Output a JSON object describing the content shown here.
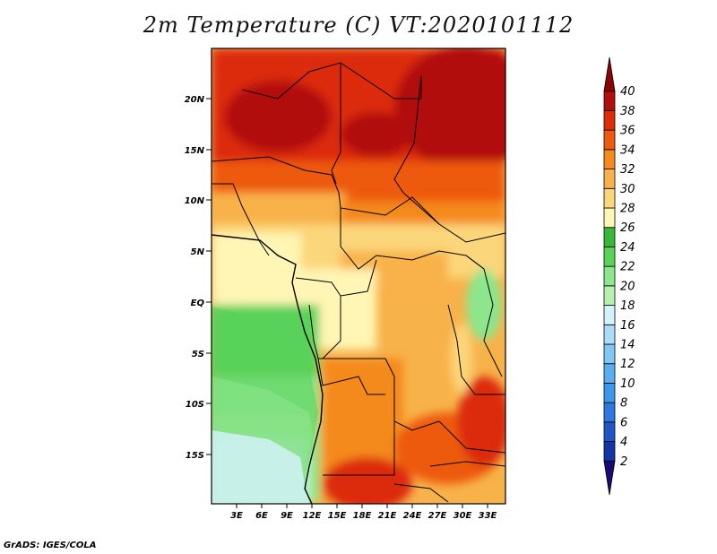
{
  "title": "2m Temperature (C)  VT:2020101112",
  "credit": "GrADS: IGES/COLA",
  "map": {
    "region": "Central Africa",
    "lon_ticks": [
      "3E",
      "6E",
      "9E",
      "12E",
      "15E",
      "18E",
      "21E",
      "24E",
      "27E",
      "30E",
      "33E"
    ],
    "lat_ticks": [
      "20N",
      "15N",
      "10N",
      "5N",
      "EQ",
      "5S",
      "10S",
      "15S"
    ]
  },
  "colorbar": {
    "labels": [
      "2",
      "4",
      "6",
      "8",
      "10",
      "12",
      "14",
      "16",
      "18",
      "20",
      "22",
      "24",
      "26",
      "28",
      "30",
      "32",
      "34",
      "36",
      "38",
      "40"
    ],
    "colors": [
      "#1a0a78",
      "#1236a8",
      "#1e56c8",
      "#2c78e0",
      "#3c96ec",
      "#5aaef0",
      "#82c6f4",
      "#aadcf8",
      "#d4f2fc",
      "#b8f0b0",
      "#8ce68c",
      "#5ad25a",
      "#38b838",
      "#fff5b4",
      "#fcd67a",
      "#f8b24a",
      "#f48a1e",
      "#ee5a0e",
      "#dc2c08",
      "#b20e0e",
      "#8a0404"
    ]
  }
}
